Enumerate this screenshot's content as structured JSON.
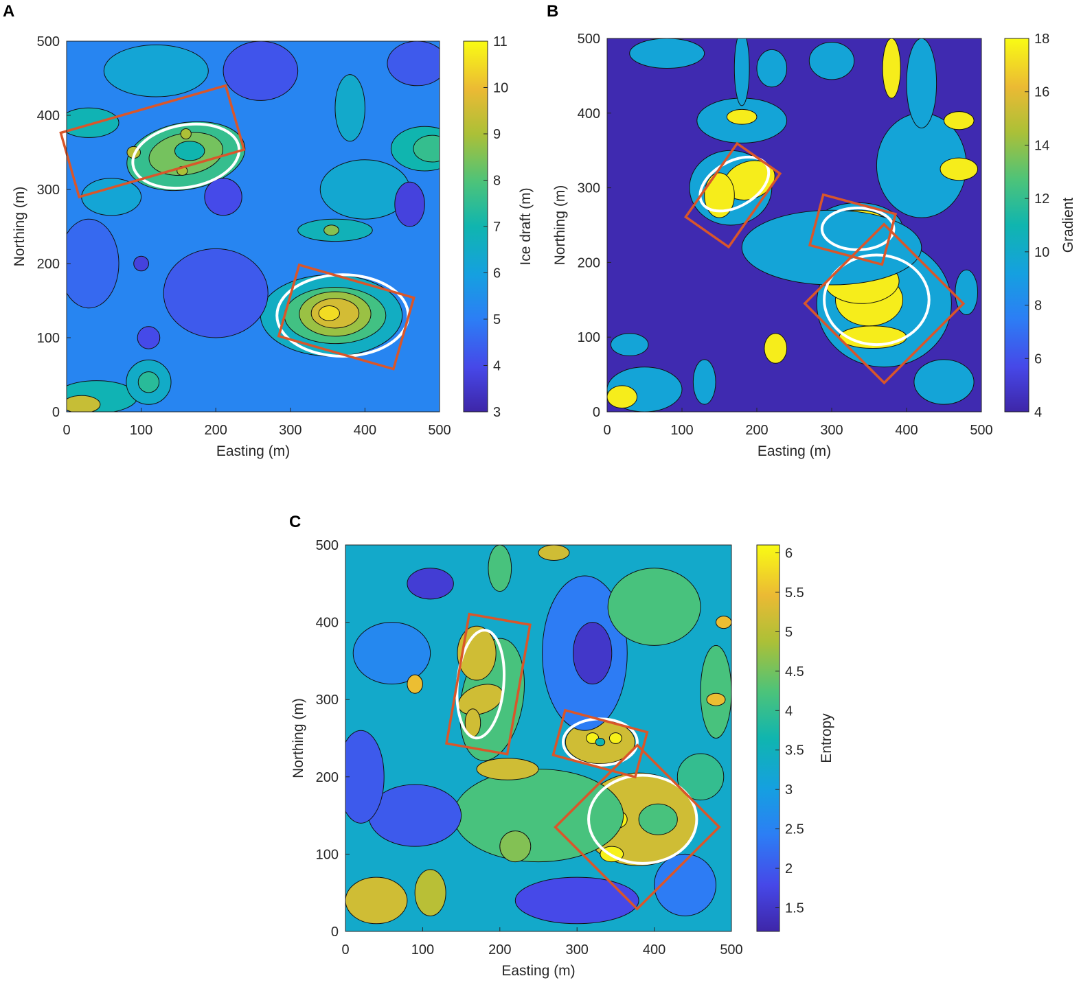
{
  "figure": {
    "panels": [
      {
        "letter": "A",
        "colorbar": {
          "label": "Ice draft (m)",
          "min": 3,
          "max": 11,
          "ticks": [
            3,
            4,
            5,
            6,
            7,
            8,
            9,
            10,
            11
          ]
        }
      },
      {
        "letter": "B",
        "colorbar": {
          "label": "Gradient",
          "min": 4,
          "max": 18,
          "ticks": [
            4,
            6,
            8,
            10,
            12,
            14,
            16,
            18
          ]
        }
      },
      {
        "letter": "C",
        "colorbar": {
          "label": "Entropy",
          "min": 1.2,
          "max": 6.1,
          "ticks": [
            1.5,
            2,
            2.5,
            3,
            3.5,
            4,
            4.5,
            5,
            5.5,
            6
          ]
        }
      }
    ]
  },
  "chart_data": [
    {
      "type": "heatmap",
      "panel": "A",
      "xlabel": "Easting (m)",
      "ylabel": "Northing (m)",
      "xlim": [
        0,
        500
      ],
      "ylim": [
        0,
        500
      ],
      "xticks": [
        0,
        100,
        200,
        300,
        400,
        500
      ],
      "yticks": [
        0,
        100,
        200,
        300,
        400,
        500
      ],
      "value_label": "Ice draft (m)",
      "value_range": [
        3,
        11
      ],
      "background_level": 5.2,
      "features": [
        {
          "x": 160,
          "y": 345,
          "rx": 80,
          "ry": 45,
          "rot": -10,
          "level": 7.6
        },
        {
          "x": 160,
          "y": 348,
          "rx": 50,
          "ry": 28,
          "rot": -10,
          "level": 8.4
        },
        {
          "x": 165,
          "y": 352,
          "rx": 20,
          "ry": 13,
          "rot": 0,
          "level": 7.0
        },
        {
          "x": 90,
          "y": 350,
          "rx": 9,
          "ry": 8,
          "rot": 0,
          "level": 9.2
        },
        {
          "x": 160,
          "y": 375,
          "rx": 7,
          "ry": 7,
          "rot": 0,
          "level": 9.0
        },
        {
          "x": 155,
          "y": 325,
          "rx": 7,
          "ry": 6,
          "rot": 0,
          "level": 9.0
        },
        {
          "x": 355,
          "y": 130,
          "rx": 95,
          "ry": 55,
          "rot": 0,
          "level": 6.6
        },
        {
          "x": 360,
          "y": 130,
          "rx": 68,
          "ry": 38,
          "rot": 0,
          "level": 7.8
        },
        {
          "x": 360,
          "y": 132,
          "rx": 48,
          "ry": 30,
          "rot": 0,
          "level": 8.8
        },
        {
          "x": 360,
          "y": 133,
          "rx": 32,
          "ry": 20,
          "rot": 0,
          "level": 9.6
        },
        {
          "x": 352,
          "y": 133,
          "rx": 14,
          "ry": 10,
          "rot": 0,
          "level": 10.5
        },
        {
          "x": 360,
          "y": 245,
          "rx": 50,
          "ry": 15,
          "rot": 0,
          "level": 6.8
        },
        {
          "x": 355,
          "y": 245,
          "rx": 10,
          "ry": 7,
          "rot": 0,
          "level": 8.6
        },
        {
          "x": 480,
          "y": 355,
          "rx": 45,
          "ry": 30,
          "rot": 0,
          "level": 7.0
        },
        {
          "x": 490,
          "y": 355,
          "rx": 25,
          "ry": 18,
          "rot": 0,
          "level": 7.6
        },
        {
          "x": 30,
          "y": 390,
          "rx": 40,
          "ry": 20,
          "rot": 0,
          "level": 6.9
        },
        {
          "x": 40,
          "y": 20,
          "rx": 55,
          "ry": 22,
          "rot": 0,
          "level": 6.9
        },
        {
          "x": 20,
          "y": 10,
          "rx": 25,
          "ry": 12,
          "rot": 0,
          "level": 9.4
        },
        {
          "x": 110,
          "y": 40,
          "rx": 30,
          "ry": 30,
          "rot": 0,
          "level": 6.5
        },
        {
          "x": 110,
          "y": 40,
          "rx": 14,
          "ry": 14,
          "rot": 0,
          "level": 7.4
        },
        {
          "x": 230,
          "y": 150,
          "rx": 22,
          "ry": 14,
          "rot": 0,
          "level": 7.0
        },
        {
          "x": 200,
          "y": 160,
          "rx": 70,
          "ry": 60,
          "rot": 0,
          "level": 4.3
        },
        {
          "x": 380,
          "y": 410,
          "rx": 20,
          "ry": 45,
          "rot": 0,
          "level": 6.4
        },
        {
          "x": 210,
          "y": 290,
          "rx": 25,
          "ry": 25,
          "rot": 0,
          "level": 4.0
        },
        {
          "x": 400,
          "y": 300,
          "rx": 60,
          "ry": 40,
          "rot": 0,
          "level": 6.3
        },
        {
          "x": 460,
          "y": 280,
          "rx": 20,
          "ry": 30,
          "rot": 0,
          "level": 3.8
        },
        {
          "x": 120,
          "y": 460,
          "rx": 70,
          "ry": 35,
          "rot": 0,
          "level": 6.2
        },
        {
          "x": 260,
          "y": 460,
          "rx": 50,
          "ry": 40,
          "rot": 0,
          "level": 4.2
        },
        {
          "x": 470,
          "y": 470,
          "rx": 40,
          "ry": 30,
          "rot": 0,
          "level": 4.3
        },
        {
          "x": 110,
          "y": 100,
          "rx": 15,
          "ry": 15,
          "rot": 0,
          "level": 4.0
        },
        {
          "x": 30,
          "y": 200,
          "rx": 40,
          "ry": 60,
          "rot": 0,
          "level": 4.6
        },
        {
          "x": 100,
          "y": 200,
          "rx": 10,
          "ry": 10,
          "rot": 0,
          "level": 3.8
        },
        {
          "x": 60,
          "y": 290,
          "rx": 40,
          "ry": 25,
          "rot": 0,
          "level": 6.2
        }
      ],
      "detection_boxes": [
        {
          "cx": 115,
          "cy": 365,
          "w": 230,
          "h": 90,
          "angle": -16
        },
        {
          "cx": 375,
          "cy": 128,
          "w": 160,
          "h": 100,
          "angle": 16
        }
      ],
      "white_outlines": [
        {
          "x": 160,
          "y": 345,
          "rx": 72,
          "ry": 42,
          "rot": -10
        },
        {
          "x": 370,
          "y": 130,
          "rx": 88,
          "ry": 55,
          "rot": 0
        }
      ]
    },
    {
      "type": "heatmap",
      "panel": "B",
      "xlabel": "Easting (m)",
      "ylabel": "Northing (m)",
      "xlim": [
        0,
        500
      ],
      "ylim": [
        0,
        500
      ],
      "xticks": [
        0,
        100,
        200,
        300,
        400,
        500
      ],
      "yticks": [
        0,
        100,
        200,
        300,
        400,
        500
      ],
      "value_label": "Gradient",
      "value_range": [
        4,
        18
      ],
      "background_level": 4.2,
      "features": [
        {
          "x": 165,
          "y": 300,
          "rx": 55,
          "ry": 50,
          "rot": 0,
          "level": 9.5
        },
        {
          "x": 190,
          "y": 310,
          "rx": 35,
          "ry": 25,
          "rot": -20,
          "level": 17.6
        },
        {
          "x": 150,
          "y": 290,
          "rx": 20,
          "ry": 30,
          "rot": 0,
          "level": 17.6
        },
        {
          "x": 335,
          "y": 245,
          "rx": 60,
          "ry": 35,
          "rot": 0,
          "level": 9.5
        },
        {
          "x": 335,
          "y": 245,
          "rx": 45,
          "ry": 25,
          "rot": 0,
          "level": 17.6
        },
        {
          "x": 333,
          "y": 245,
          "rx": 12,
          "ry": 8,
          "rot": 0,
          "level": 9.5
        },
        {
          "x": 370,
          "y": 145,
          "rx": 90,
          "ry": 85,
          "rot": 0,
          "level": 9.5
        },
        {
          "x": 350,
          "y": 150,
          "rx": 45,
          "ry": 35,
          "rot": 0,
          "level": 17.6
        },
        {
          "x": 355,
          "y": 100,
          "rx": 45,
          "ry": 15,
          "rot": 0,
          "level": 17.6
        },
        {
          "x": 340,
          "y": 175,
          "rx": 50,
          "ry": 30,
          "rot": 0,
          "level": 17.6
        },
        {
          "x": 180,
          "y": 390,
          "rx": 60,
          "ry": 30,
          "rot": 0,
          "level": 9.5
        },
        {
          "x": 180,
          "y": 395,
          "rx": 20,
          "ry": 10,
          "rot": 0,
          "level": 17.6
        },
        {
          "x": 300,
          "y": 220,
          "rx": 120,
          "ry": 50,
          "rot": 0,
          "level": 9.5
        },
        {
          "x": 420,
          "y": 330,
          "rx": 60,
          "ry": 70,
          "rot": 0,
          "level": 9.5
        },
        {
          "x": 470,
          "y": 325,
          "rx": 25,
          "ry": 15,
          "rot": 0,
          "level": 17.6
        },
        {
          "x": 470,
          "y": 390,
          "rx": 20,
          "ry": 12,
          "rot": 0,
          "level": 17.6
        },
        {
          "x": 420,
          "y": 440,
          "rx": 20,
          "ry": 60,
          "rot": 0,
          "level": 9.5
        },
        {
          "x": 380,
          "y": 460,
          "rx": 12,
          "ry": 40,
          "rot": 0,
          "level": 17.6
        },
        {
          "x": 180,
          "y": 460,
          "rx": 10,
          "ry": 50,
          "rot": 0,
          "level": 9.5
        },
        {
          "x": 80,
          "y": 480,
          "rx": 50,
          "ry": 20,
          "rot": 0,
          "level": 9.5
        },
        {
          "x": 50,
          "y": 30,
          "rx": 50,
          "ry": 30,
          "rot": 0,
          "level": 9.5
        },
        {
          "x": 20,
          "y": 20,
          "rx": 20,
          "ry": 15,
          "rot": 0,
          "level": 17.6
        },
        {
          "x": 130,
          "y": 40,
          "rx": 15,
          "ry": 30,
          "rot": 0,
          "level": 9.5
        },
        {
          "x": 225,
          "y": 85,
          "rx": 15,
          "ry": 20,
          "rot": 0,
          "level": 17.6
        },
        {
          "x": 450,
          "y": 40,
          "rx": 40,
          "ry": 30,
          "rot": 0,
          "level": 9.5
        },
        {
          "x": 30,
          "y": 90,
          "rx": 25,
          "ry": 15,
          "rot": 0,
          "level": 9.5
        },
        {
          "x": 480,
          "y": 160,
          "rx": 15,
          "ry": 30,
          "rot": 0,
          "level": 9.5
        },
        {
          "x": 220,
          "y": 460,
          "rx": 20,
          "ry": 25,
          "rot": 0,
          "level": 9.5
        },
        {
          "x": 300,
          "y": 470,
          "rx": 30,
          "ry": 25,
          "rot": 0,
          "level": 9.5
        }
      ],
      "detection_boxes": [
        {
          "cx": 168,
          "cy": 290,
          "w": 70,
          "h": 120,
          "angle": 35
        },
        {
          "cx": 328,
          "cy": 244,
          "w": 100,
          "h": 70,
          "angle": 15
        },
        {
          "cx": 370,
          "cy": 145,
          "w": 150,
          "h": 150,
          "angle": 45
        }
      ],
      "white_outlines": [
        {
          "x": 170,
          "y": 305,
          "rx": 50,
          "ry": 30,
          "rot": -30
        },
        {
          "x": 335,
          "y": 245,
          "rx": 48,
          "ry": 28,
          "rot": 0
        },
        {
          "x": 360,
          "y": 150,
          "rx": 70,
          "ry": 60,
          "rot": 0
        }
      ]
    },
    {
      "type": "heatmap",
      "panel": "C",
      "xlabel": "Easting (m)",
      "ylabel": "Northing (m)",
      "xlim": [
        0,
        500
      ],
      "ylim": [
        0,
        500
      ],
      "xticks": [
        0,
        100,
        200,
        300,
        400,
        500
      ],
      "yticks": [
        0,
        100,
        200,
        300,
        400,
        500
      ],
      "value_label": "Entropy",
      "value_range": [
        1.2,
        6.1
      ],
      "background_level": 3.3,
      "features": [
        {
          "x": 190,
          "y": 300,
          "rx": 40,
          "ry": 80,
          "rot": 10,
          "level": 4.2
        },
        {
          "x": 170,
          "y": 360,
          "rx": 25,
          "ry": 35,
          "rot": 0,
          "level": 5.2
        },
        {
          "x": 175,
          "y": 300,
          "rx": 30,
          "ry": 18,
          "rot": -20,
          "level": 5.2
        },
        {
          "x": 165,
          "y": 270,
          "rx": 10,
          "ry": 18,
          "rot": 0,
          "level": 5.2
        },
        {
          "x": 330,
          "y": 245,
          "rx": 45,
          "ry": 28,
          "rot": 0,
          "level": 5.2
        },
        {
          "x": 320,
          "y": 250,
          "rx": 8,
          "ry": 7,
          "rot": 0,
          "level": 6.0
        },
        {
          "x": 350,
          "y": 250,
          "rx": 8,
          "ry": 7,
          "rot": 0,
          "level": 6.0
        },
        {
          "x": 330,
          "y": 245,
          "rx": 6,
          "ry": 5,
          "rot": 0,
          "level": 3.6
        },
        {
          "x": 380,
          "y": 145,
          "rx": 75,
          "ry": 60,
          "rot": 0,
          "level": 5.2
        },
        {
          "x": 350,
          "y": 145,
          "rx": 15,
          "ry": 12,
          "rot": 0,
          "level": 6.0
        },
        {
          "x": 345,
          "y": 100,
          "rx": 15,
          "ry": 10,
          "rot": 0,
          "level": 6.0
        },
        {
          "x": 405,
          "y": 145,
          "rx": 25,
          "ry": 20,
          "rot": 0,
          "level": 4.2
        },
        {
          "x": 250,
          "y": 150,
          "rx": 110,
          "ry": 60,
          "rot": 0,
          "level": 4.2
        },
        {
          "x": 210,
          "y": 210,
          "rx": 40,
          "ry": 14,
          "rot": 0,
          "level": 5.2
        },
        {
          "x": 310,
          "y": 360,
          "rx": 55,
          "ry": 100,
          "rot": 0,
          "level": 2.4
        },
        {
          "x": 320,
          "y": 360,
          "rx": 25,
          "ry": 40,
          "rot": 0,
          "level": 1.5
        },
        {
          "x": 110,
          "y": 450,
          "rx": 30,
          "ry": 20,
          "rot": 0,
          "level": 1.6
        },
        {
          "x": 400,
          "y": 420,
          "rx": 60,
          "ry": 50,
          "rot": 0,
          "level": 4.2
        },
        {
          "x": 480,
          "y": 310,
          "rx": 20,
          "ry": 60,
          "rot": 0,
          "level": 4.2
        },
        {
          "x": 490,
          "y": 400,
          "rx": 10,
          "ry": 8,
          "rot": 0,
          "level": 5.5
        },
        {
          "x": 480,
          "y": 300,
          "rx": 12,
          "ry": 8,
          "rot": 0,
          "level": 5.5
        },
        {
          "x": 40,
          "y": 40,
          "rx": 40,
          "ry": 30,
          "rot": 0,
          "level": 5.2
        },
        {
          "x": 110,
          "y": 50,
          "rx": 20,
          "ry": 30,
          "rot": 0,
          "level": 5.0
        },
        {
          "x": 300,
          "y": 40,
          "rx": 80,
          "ry": 30,
          "rot": 0,
          "level": 1.8
        },
        {
          "x": 90,
          "y": 150,
          "rx": 60,
          "ry": 40,
          "rot": 0,
          "level": 2.0
        },
        {
          "x": 60,
          "y": 360,
          "rx": 50,
          "ry": 40,
          "rot": 0,
          "level": 2.6
        },
        {
          "x": 90,
          "y": 320,
          "rx": 10,
          "ry": 12,
          "rot": 0,
          "level": 5.5
        },
        {
          "x": 200,
          "y": 470,
          "rx": 15,
          "ry": 30,
          "rot": 0,
          "level": 4.2
        },
        {
          "x": 270,
          "y": 490,
          "rx": 20,
          "ry": 10,
          "rot": 0,
          "level": 5.2
        },
        {
          "x": 440,
          "y": 60,
          "rx": 40,
          "ry": 40,
          "rot": 0,
          "level": 2.4
        },
        {
          "x": 20,
          "y": 200,
          "rx": 30,
          "ry": 60,
          "rot": 0,
          "level": 2.0
        },
        {
          "x": 460,
          "y": 200,
          "rx": 30,
          "ry": 30,
          "rot": 0,
          "level": 4.0
        },
        {
          "x": 220,
          "y": 110,
          "rx": 20,
          "ry": 20,
          "rot": 0,
          "level": 4.6
        }
      ],
      "detection_boxes": [
        {
          "cx": 185,
          "cy": 320,
          "w": 80,
          "h": 170,
          "angle": 10
        },
        {
          "cx": 330,
          "cy": 243,
          "w": 110,
          "h": 60,
          "angle": 15
        },
        {
          "cx": 378,
          "cy": 135,
          "w": 150,
          "h": 150,
          "angle": 45
        }
      ],
      "white_outlines": [
        {
          "x": 175,
          "y": 320,
          "rx": 30,
          "ry": 70,
          "rot": 5
        },
        {
          "x": 330,
          "y": 245,
          "rx": 48,
          "ry": 30,
          "rot": 0
        },
        {
          "x": 385,
          "y": 145,
          "rx": 70,
          "ry": 57,
          "rot": 0
        }
      ]
    }
  ]
}
